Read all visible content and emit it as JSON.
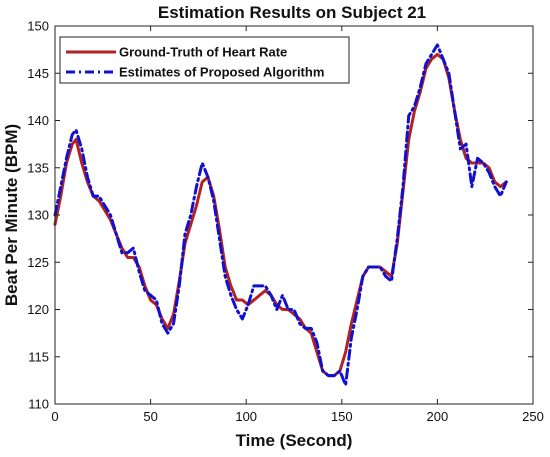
{
  "chart_data": {
    "type": "line",
    "title": "Estimation Results on Subject 21",
    "xlabel": "Time (Second)",
    "ylabel": "Beat Per Minute (BPM)",
    "xlim": [
      0,
      250
    ],
    "ylim": [
      110,
      150
    ],
    "xticks": [
      0,
      50,
      100,
      150,
      200,
      250
    ],
    "yticks": [
      110,
      115,
      120,
      125,
      130,
      135,
      140,
      145,
      150
    ],
    "grid": false,
    "legend_position": "top-left",
    "series": [
      {
        "name": "Ground-Truth of Heart Rate",
        "color": "#b22222",
        "style": "solid",
        "x": [
          0,
          3,
          6,
          9,
          11,
          14,
          17,
          20,
          23,
          26,
          29,
          32,
          35,
          38,
          41,
          44,
          47,
          50,
          53,
          56,
          59,
          62,
          65,
          68,
          71,
          74,
          77,
          80,
          83,
          86,
          89,
          92,
          95,
          98,
          101,
          104,
          107,
          110,
          113,
          116,
          119,
          122,
          125,
          128,
          131,
          134,
          137,
          140,
          143,
          146,
          149,
          152,
          155,
          158,
          161,
          164,
          167,
          170,
          173,
          176,
          179,
          182,
          185,
          188,
          191,
          194,
          197,
          200,
          203,
          206,
          209,
          212,
          215,
          218,
          221,
          224,
          227,
          230,
          233,
          236
        ],
        "y": [
          129.0,
          132.0,
          135.5,
          137.5,
          138.0,
          135.5,
          133.5,
          132.0,
          131.5,
          130.5,
          129.5,
          128.0,
          126.5,
          125.5,
          125.5,
          124.5,
          122.5,
          121.0,
          120.5,
          119.0,
          118.0,
          119.5,
          123.0,
          127.0,
          129.0,
          131.0,
          133.5,
          134.0,
          132.0,
          128.5,
          124.5,
          122.5,
          121.0,
          121.0,
          120.5,
          121.0,
          121.5,
          122.0,
          121.5,
          120.5,
          120.0,
          120.0,
          119.5,
          119.0,
          118.0,
          117.5,
          115.5,
          113.5,
          113.0,
          113.0,
          113.5,
          115.5,
          118.5,
          121.0,
          123.5,
          124.5,
          124.5,
          124.5,
          124.0,
          123.5,
          127.0,
          132.5,
          138.0,
          141.0,
          143.0,
          145.5,
          146.5,
          147.0,
          146.5,
          144.5,
          141.0,
          138.0,
          136.0,
          135.5,
          135.5,
          135.5,
          135.0,
          133.5,
          133.0,
          133.5
        ]
      },
      {
        "name": "Estimates of Proposed Algorithm",
        "color": "#1010d0",
        "style": "dashdot",
        "x": [
          0,
          3,
          6,
          9,
          11,
          14,
          17,
          20,
          23,
          26,
          29,
          32,
          35,
          38,
          41,
          44,
          47,
          50,
          53,
          56,
          59,
          62,
          65,
          68,
          71,
          74,
          77,
          80,
          83,
          86,
          89,
          92,
          95,
          98,
          101,
          104,
          107,
          110,
          113,
          116,
          119,
          122,
          125,
          128,
          131,
          134,
          137,
          140,
          143,
          146,
          149,
          152,
          155,
          158,
          161,
          164,
          167,
          170,
          173,
          176,
          179,
          182,
          185,
          188,
          191,
          194,
          197,
          200,
          203,
          206,
          209,
          212,
          215,
          218,
          221,
          224,
          227,
          230,
          233,
          236
        ],
        "y": [
          130.0,
          133.0,
          136.0,
          138.5,
          139.0,
          137.0,
          134.0,
          132.0,
          132.0,
          131.0,
          130.0,
          128.0,
          126.0,
          126.0,
          126.5,
          124.0,
          122.0,
          121.5,
          121.0,
          118.5,
          117.5,
          118.5,
          122.5,
          128.0,
          130.0,
          133.0,
          135.5,
          134.0,
          131.5,
          127.5,
          123.5,
          121.5,
          120.0,
          119.0,
          120.5,
          122.5,
          122.5,
          122.5,
          121.5,
          120.0,
          121.5,
          120.0,
          120.0,
          118.5,
          118.0,
          118.0,
          116.5,
          113.5,
          113.0,
          113.0,
          113.5,
          112.0,
          117.0,
          120.0,
          123.5,
          124.5,
          124.5,
          124.5,
          123.5,
          123.0,
          127.5,
          133.0,
          140.5,
          141.5,
          143.5,
          146.0,
          147.0,
          148.0,
          146.5,
          145.0,
          141.0,
          137.0,
          137.5,
          133.0,
          136.0,
          135.5,
          134.5,
          133.0,
          132.0,
          133.5
        ]
      }
    ]
  }
}
